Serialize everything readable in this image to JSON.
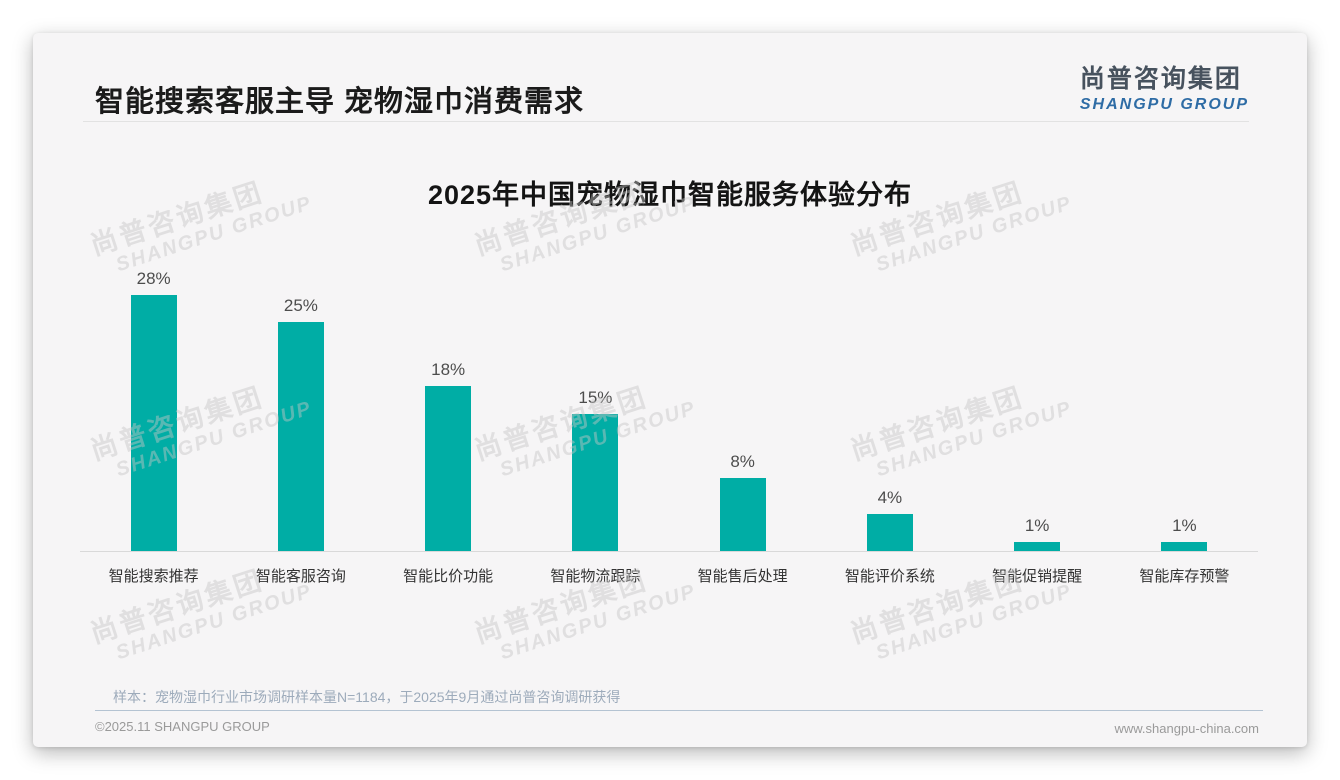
{
  "page": {
    "title": "智能搜索客服主导 宠物湿巾消费需求",
    "logo": {
      "cn": "尚普咨询集团",
      "en": "SHANGPU GROUP"
    },
    "watermark": {
      "cn": "尚普咨询集团",
      "en": "SHANGPU GROUP"
    },
    "note": "样本：宠物湿巾行业市场调研样本量N=1184，于2025年9月通过尚普咨询调研获得",
    "footer": {
      "left": "©2025.11 SHANGPU GROUP",
      "right": "www.shangpu-china.com"
    }
  },
  "chart_data": {
    "type": "bar",
    "title": "2025年中国宠物湿巾智能服务体验分布",
    "categories": [
      "智能搜索推荐",
      "智能客服咨询",
      "智能比价功能",
      "智能物流跟踪",
      "智能售后处理",
      "智能评价系统",
      "智能促销提醒",
      "智能库存预警"
    ],
    "values": [
      28,
      25,
      18,
      15,
      8,
      4,
      1,
      1
    ],
    "value_suffix": "%",
    "bar_color": "#00ada5",
    "xlabel": "",
    "ylabel": "",
    "ylim": [
      0,
      30
    ],
    "grid": false,
    "legend": "none",
    "value_labels_position": "above bars"
  }
}
